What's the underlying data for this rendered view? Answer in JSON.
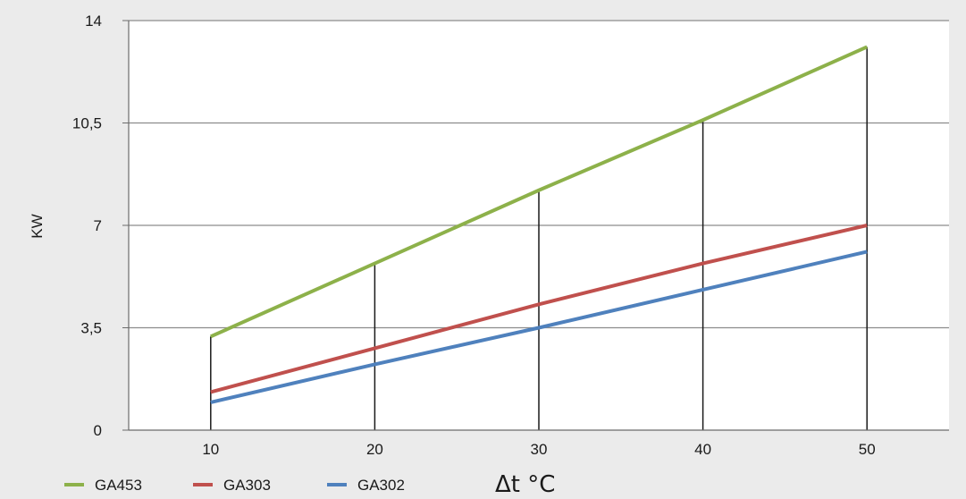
{
  "chart_data": {
    "type": "line",
    "x": [
      10,
      20,
      30,
      40,
      50
    ],
    "xlim": [
      5,
      55
    ],
    "ylim": [
      0,
      14
    ],
    "y_ticks": [
      0,
      3.5,
      7,
      10.5,
      14
    ],
    "y_tick_labels": [
      "0",
      "3,5",
      "7",
      "10,5",
      "14"
    ],
    "x_tick_labels": [
      "10",
      "20",
      "30",
      "40",
      "50"
    ],
    "ylabel": "KW",
    "xlabel": "Δt °C",
    "grid": "horizontal",
    "legend_position": "bottom-left",
    "drop_lines": "vertical lines from the top series value down to 0 at each x",
    "series": [
      {
        "name": "GA453",
        "color": "#8db14a",
        "values": [
          3.2,
          5.7,
          8.2,
          10.6,
          13.1
        ]
      },
      {
        "name": "GA303",
        "color": "#c0504d",
        "values": [
          1.3,
          2.8,
          4.3,
          5.7,
          7.0
        ]
      },
      {
        "name": "GA302",
        "color": "#4f81bd",
        "values": [
          0.95,
          2.25,
          3.5,
          4.8,
          6.1
        ]
      }
    ]
  }
}
